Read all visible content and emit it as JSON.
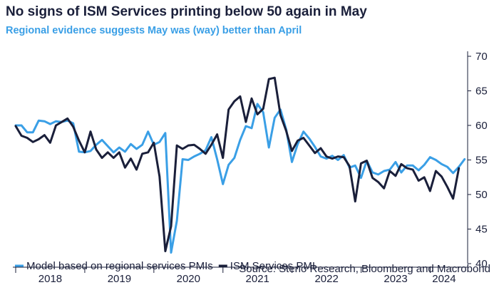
{
  "chart_data": {
    "type": "line",
    "title": "No signs of ISM Services printing below 50 again in May",
    "subtitle": "Regional evidence suggests May was (way) better than April",
    "source": "Source: Steno Research, Bloomberg and Macrobond",
    "ylim": [
      40,
      70
    ],
    "yticks": [
      "40",
      "45",
      "50",
      "55",
      "60",
      "65",
      "70"
    ],
    "xlim": [
      2018.0,
      2024.5
    ],
    "xticks": [
      {
        "label": "2018",
        "x": 2018.5
      },
      {
        "label": "2019",
        "x": 2019.5
      },
      {
        "label": "2020",
        "x": 2020.5
      },
      {
        "label": "2021",
        "x": 2021.5
      },
      {
        "label": "2022",
        "x": 2022.5
      },
      {
        "label": "2023",
        "x": 2023.5
      },
      {
        "label": "2024",
        "x": 2024.2
      }
    ],
    "legend": [
      {
        "name": "Model based on regional services PMIs",
        "color": "#3a9fe6"
      },
      {
        "name": "ISM Services PMI",
        "color": "#1a1f3a"
      }
    ],
    "series": [
      {
        "name": "Model based on regional services PMIs",
        "color": "#3a9fe6",
        "start": 2018.0,
        "step": 0.0833,
        "values": [
          60.0,
          60.0,
          59.0,
          59.0,
          60.7,
          60.6,
          60.2,
          60.6,
          60.5,
          60.7,
          60.3,
          56.2,
          56.1,
          56.3,
          57.2,
          57.9,
          57.0,
          56.1,
          56.8,
          56.2,
          57.3,
          56.6,
          57.2,
          59.1,
          57.2,
          57.6,
          58.9,
          41.6,
          46.2,
          55.1,
          55.0,
          55.5,
          55.9,
          56.4,
          58.3,
          55.1,
          51.5,
          54.3,
          55.3,
          57.9,
          59.9,
          59.6,
          63.1,
          61.9,
          56.8,
          61.1,
          62.3,
          59.4,
          54.7,
          57.3,
          59.1,
          58.1,
          56.9,
          55.5,
          55.2,
          55.6,
          55.0,
          55.7,
          53.9,
          54.2,
          52.4,
          54.9,
          53.2,
          52.9,
          53.4,
          53.6,
          54.7,
          53.2,
          54.2,
          54.2,
          53.5,
          54.3,
          55.4,
          55.0,
          54.4,
          54.0,
          53.1,
          54.0,
          55.1
        ]
      },
      {
        "name": "ISM Services PMI",
        "color": "#1a1f3a",
        "start": 2018.0,
        "step": 0.0833,
        "values": [
          59.9,
          58.5,
          58.2,
          57.6,
          58.0,
          58.6,
          57.5,
          60.0,
          60.5,
          61.0,
          59.8,
          57.8,
          56.1,
          59.1,
          56.5,
          55.3,
          56.1,
          55.3,
          56.1,
          53.9,
          55.2,
          53.6,
          55.9,
          56.1,
          57.5,
          52.6,
          41.8,
          45.4,
          57.1,
          56.6,
          57.1,
          57.2,
          56.6,
          55.9,
          57.2,
          58.7,
          55.3,
          62.3,
          63.5,
          64.2,
          60.5,
          63.9,
          61.6,
          62.4,
          66.7,
          66.9,
          61.5,
          59.2,
          56.3,
          57.8,
          58.2,
          57.1,
          56.0,
          56.7,
          55.5,
          55.2,
          55.5,
          55.4,
          54.1,
          49.0,
          54.5,
          54.9,
          52.4,
          51.8,
          50.9,
          53.4,
          52.7,
          54.4,
          53.8,
          53.6,
          52.0,
          52.5,
          50.5,
          53.4,
          52.6,
          51.1,
          49.4,
          53.8
        ]
      }
    ]
  }
}
